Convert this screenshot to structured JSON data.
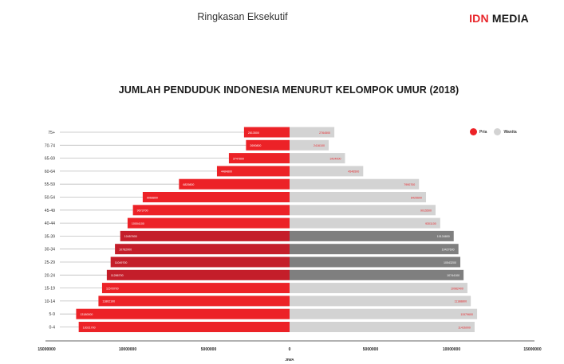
{
  "header": {
    "title": "Ringkasan Eksekutif",
    "brand_idn": "IDN",
    "brand_media": "MEDIA"
  },
  "colors": {
    "pria": "#ec2227",
    "pria_dark": "#c41e2a",
    "wanita": "#d3d3d3",
    "wanita_dark": "#7f7f7f"
  },
  "chart_data": {
    "type": "bar",
    "orientation": "horizontal",
    "title": "JUMLAH PENDUDUK INDONESIA MENURUT KELOMPOK UMUR (2018)",
    "xlabel": "JIWA",
    "xlim": [
      -15000000,
      15000000
    ],
    "xticks": [
      {
        "value": -15000000,
        "label": "15000000"
      },
      {
        "value": -10000000,
        "label": "10000000"
      },
      {
        "value": -5000000,
        "label": "5000000"
      },
      {
        "value": 0,
        "label": "0"
      },
      {
        "value": 5000000,
        "label": "5000000"
      },
      {
        "value": 10000000,
        "label": "10000000"
      },
      {
        "value": 15000000,
        "label": "15000000"
      }
    ],
    "legend_position": "top-right",
    "categories": [
      "75+",
      "70-74",
      "65-69",
      "60-64",
      "55-59",
      "50-54",
      "45-49",
      "40-44",
      "35-39",
      "30-34",
      "25-29",
      "20-24",
      "15-19",
      "10-14",
      "5-9",
      "0-4"
    ],
    "highlight_categories": [
      "35-39",
      "30-34",
      "25-29",
      "20-24"
    ],
    "series": [
      {
        "name": "Pria",
        "values": [
          2813500,
          2690800,
          3747800,
          4484800,
          6829800,
          9068800,
          9673700,
          10004100,
          10457600,
          10782900,
          11049700,
          11286700,
          11578700,
          11802100,
          13180000,
          13021700
        ],
        "labels": [
          "2813500",
          "2690800",
          "3747800",
          "4484800",
          "6829800",
          "9068800",
          "9673700",
          "10004100",
          "10457600",
          "10782900",
          "11049700",
          "11286700",
          "11578700",
          "11802100",
          "13180000",
          "13021700"
        ]
      },
      {
        "name": "Wanita",
        "values": [
          2764500,
          2416100,
          3424000,
          4546500,
          7990700,
          8425600,
          9015500,
          9301100,
          10134800,
          10427600,
          10543200,
          10744100,
          10982400,
          11188800,
          11579600,
          11426000
        ],
        "labels": [
          "2764500",
          "2416100",
          "3424000",
          "4546500",
          "7990700",
          "8425600",
          "9015500",
          "9301100",
          "10134800",
          "10427600",
          "10543200",
          "10744100",
          "10982400",
          "11188800",
          "11579600",
          "11426000"
        ]
      }
    ]
  }
}
